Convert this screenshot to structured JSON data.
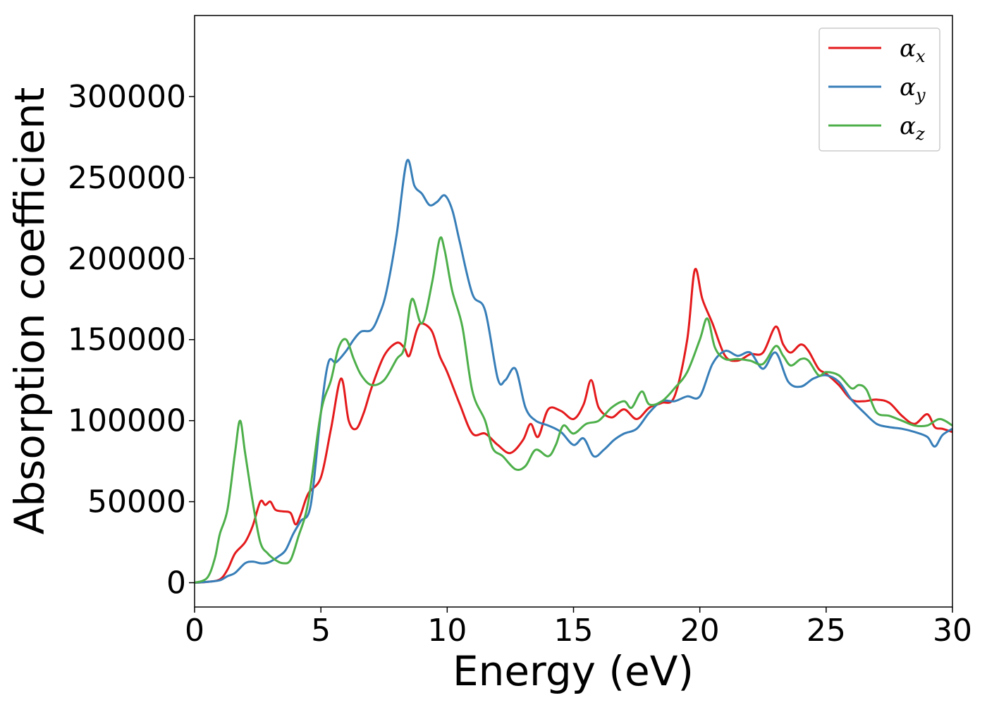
{
  "chart_data": {
    "type": "line",
    "xlabel": "Energy (eV)",
    "ylabel": "Absorption coefficient",
    "xlim": [
      0,
      30
    ],
    "ylim": [
      -15000,
      350000
    ],
    "xticks": [
      0,
      5,
      10,
      15,
      20,
      25,
      30
    ],
    "xtick_labels": [
      "0",
      "5",
      "10",
      "15",
      "20",
      "25",
      "30"
    ],
    "yticks": [
      0,
      50000,
      100000,
      150000,
      200000,
      250000,
      300000
    ],
    "ytick_labels": [
      "0",
      "50000",
      "100000",
      "150000",
      "200000",
      "250000",
      "300000"
    ],
    "grid": false,
    "legend_position": "top-right",
    "series": [
      {
        "name": "α_x",
        "legend_base": "α",
        "legend_sub": "x",
        "color": "#e41a1c",
        "x": [
          0,
          0.5,
          1,
          1.3,
          1.6,
          2,
          2.3,
          2.6,
          2.8,
          3,
          3.2,
          3.5,
          3.8,
          4,
          4.2,
          4.5,
          5,
          5.4,
          5.8,
          6.1,
          6.4,
          6.7,
          7,
          7.5,
          8,
          8.3,
          8.5,
          8.8,
          9,
          9.4,
          9.7,
          10,
          10.5,
          11,
          11.5,
          12,
          12.5,
          13,
          13.3,
          13.6,
          14,
          14.5,
          15,
          15.4,
          15.7,
          16,
          16.5,
          17,
          17.5,
          18,
          18.5,
          19,
          19.5,
          19.8,
          20.1,
          20.5,
          21,
          21.5,
          22,
          22.5,
          23,
          23.3,
          23.6,
          24,
          24.3,
          24.7,
          25,
          25.5,
          26,
          26.5,
          27,
          27.5,
          28,
          28.5,
          29,
          29.3,
          29.6,
          30
        ],
        "y": [
          0,
          500,
          2000,
          8000,
          18000,
          25000,
          35000,
          50000,
          48000,
          50000,
          45000,
          44000,
          43000,
          36000,
          42000,
          55000,
          65000,
          95000,
          126000,
          100000,
          95000,
          105000,
          120000,
          140000,
          148000,
          145000,
          140000,
          156000,
          160000,
          155000,
          140000,
          130000,
          110000,
          92000,
          92000,
          85000,
          80000,
          88000,
          98000,
          90000,
          107000,
          106000,
          101000,
          110000,
          125000,
          108000,
          102000,
          107000,
          101000,
          108000,
          111000,
          115000,
          150000,
          193000,
          175000,
          160000,
          140000,
          137000,
          141000,
          142000,
          158000,
          147000,
          142000,
          147000,
          143000,
          132000,
          129000,
          122000,
          113000,
          112000,
          113000,
          111000,
          103000,
          98000,
          104000,
          96000,
          95000,
          93000
        ]
      },
      {
        "name": "α_y",
        "legend_base": "α",
        "legend_sub": "y",
        "color": "#377eb8",
        "x": [
          0,
          0.5,
          1,
          1.3,
          1.6,
          2,
          2.3,
          2.6,
          2.8,
          3,
          3.3,
          3.6,
          3.9,
          4.2,
          4.6,
          5,
          5.3,
          5.6,
          6,
          6.3,
          6.6,
          7,
          7.3,
          7.6,
          8,
          8.4,
          8.7,
          9,
          9.3,
          9.6,
          9.9,
          10.2,
          10.5,
          11,
          11.5,
          12,
          12.3,
          12.7,
          13.1,
          13.5,
          14,
          14.5,
          15,
          15.4,
          15.8,
          16.2,
          16.6,
          17,
          17.5,
          18,
          18.5,
          19,
          19.5,
          20,
          20.5,
          21,
          21.5,
          22,
          22.5,
          23,
          23.5,
          24,
          24.5,
          25,
          25.5,
          26,
          26.5,
          27,
          27.5,
          28,
          28.5,
          29,
          29.3,
          29.6,
          30
        ],
        "y": [
          0,
          500,
          1500,
          4000,
          6000,
          12000,
          13000,
          12000,
          12000,
          13000,
          16000,
          20000,
          30000,
          38000,
          48000,
          105000,
          136000,
          136000,
          143000,
          150000,
          155000,
          156000,
          165000,
          180000,
          215000,
          260000,
          245000,
          240000,
          233000,
          235000,
          239000,
          230000,
          210000,
          178000,
          168000,
          126000,
          125000,
          132000,
          108000,
          100000,
          97000,
          93000,
          85000,
          89000,
          78000,
          82000,
          88000,
          92000,
          95000,
          105000,
          112000,
          112000,
          115000,
          115000,
          135000,
          143000,
          140000,
          142000,
          132000,
          142000,
          124000,
          121000,
          126000,
          128000,
          124000,
          113000,
          105000,
          98000,
          96000,
          95000,
          93000,
          90000,
          84000,
          91000,
          95000
        ]
      },
      {
        "name": "α_z",
        "legend_base": "α",
        "legend_sub": "z",
        "color": "#4daf4a",
        "x": [
          0,
          0.5,
          0.8,
          1,
          1.3,
          1.6,
          1.8,
          2,
          2.3,
          2.6,
          2.9,
          3.2,
          3.5,
          3.8,
          4.1,
          4.5,
          5,
          5.4,
          5.7,
          6,
          6.3,
          6.6,
          7,
          7.5,
          8,
          8.3,
          8.6,
          9,
          9.4,
          9.7,
          9.9,
          10.2,
          10.6,
          11,
          11.5,
          11.8,
          12.2,
          12.7,
          13.1,
          13.5,
          14,
          14.3,
          14.6,
          15,
          15.5,
          16,
          16.5,
          17,
          17.3,
          17.7,
          18,
          18.5,
          19,
          19.5,
          20,
          20.3,
          20.6,
          21,
          21.5,
          22,
          22.5,
          23,
          23.3,
          23.6,
          24,
          24.3,
          24.7,
          25,
          25.5,
          26,
          26.3,
          26.6,
          27,
          27.5,
          28,
          28.5,
          29,
          29.5,
          30
        ],
        "y": [
          0,
          3000,
          15000,
          30000,
          45000,
          80000,
          100000,
          80000,
          50000,
          25000,
          18000,
          14000,
          12000,
          14000,
          28000,
          50000,
          105000,
          125000,
          145000,
          150000,
          138000,
          128000,
          122000,
          125000,
          138000,
          145000,
          175000,
          160000,
          185000,
          212000,
          205000,
          180000,
          158000,
          118000,
          100000,
          83000,
          78000,
          70000,
          72000,
          82000,
          78000,
          85000,
          97000,
          92000,
          98000,
          100000,
          108000,
          112000,
          108000,
          118000,
          110000,
          112000,
          120000,
          130000,
          150000,
          163000,
          145000,
          138000,
          138000,
          137000,
          135000,
          146000,
          140000,
          134000,
          138000,
          137000,
          128000,
          130000,
          128000,
          120000,
          122000,
          119000,
          105000,
          103000,
          100000,
          97000,
          97000,
          101000,
          97000
        ]
      }
    ]
  }
}
